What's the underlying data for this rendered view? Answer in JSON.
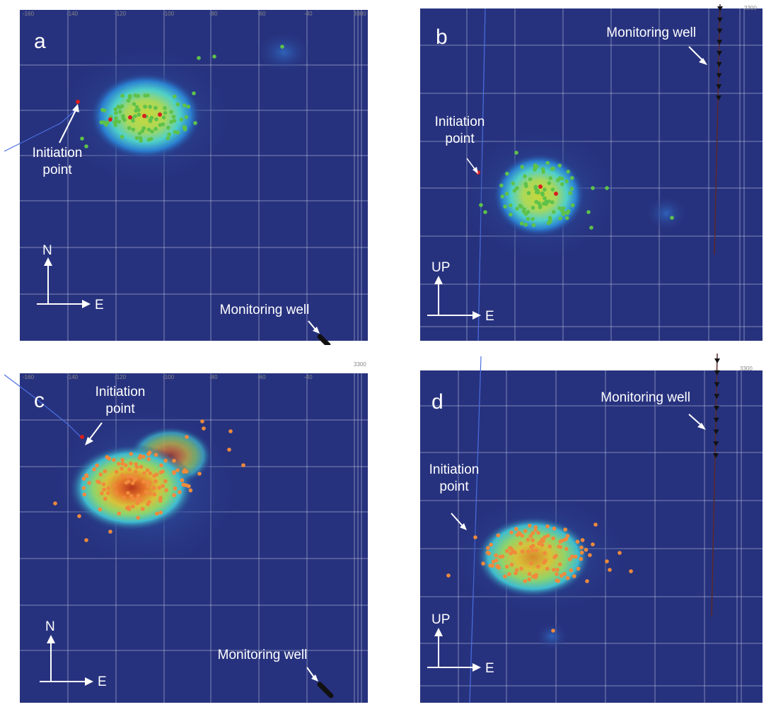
{
  "panels": [
    {
      "id": "a",
      "letter": "a",
      "view": "plan",
      "axis_vertical": "N",
      "axis_horizontal": "E",
      "initiation_label_line1": "Initiation",
      "initiation_label_line2": "point",
      "monitoring_label": "Monitoring well",
      "ticks": [
        "-160",
        "-140",
        "-120",
        "-100",
        "-80",
        "-60",
        "-40"
      ],
      "corner_tick": "3300",
      "event_color": "#5ec24a",
      "highlight_color": "#d81f1f"
    },
    {
      "id": "b",
      "letter": "b",
      "view": "section",
      "axis_vertical": "UP",
      "axis_horizontal": "E",
      "initiation_label_line1": "Initiation",
      "initiation_label_line2": "point",
      "monitoring_label": "Monitoring well",
      "ticks": [],
      "corner_tick": "3300",
      "event_color": "#5ec24a",
      "highlight_color": "#d81f1f"
    },
    {
      "id": "c",
      "letter": "c",
      "view": "plan",
      "axis_vertical": "N",
      "axis_horizontal": "E",
      "initiation_label_line1": "Initiation",
      "initiation_label_line2": "point",
      "monitoring_label": "Monitoring well",
      "ticks": [
        "-160",
        "-140",
        "-120",
        "-100",
        "-80",
        "-60",
        "-40"
      ],
      "corner_tick": "3300",
      "event_color": "#f08a3c",
      "highlight_color": "#d81f1f"
    },
    {
      "id": "d",
      "letter": "d",
      "view": "section",
      "axis_vertical": "UP",
      "axis_horizontal": "E",
      "initiation_label_line1": "Initiation",
      "initiation_label_line2": "point",
      "monitoring_label": "Monitoring well",
      "ticks": [],
      "corner_tick": "3300",
      "event_color": "#f08a3c",
      "highlight_color": "#d81f1f"
    }
  ],
  "colors": {
    "background": "#27327e",
    "grid": "#c9cde6",
    "text": "#ffffff",
    "well": "#111111"
  }
}
